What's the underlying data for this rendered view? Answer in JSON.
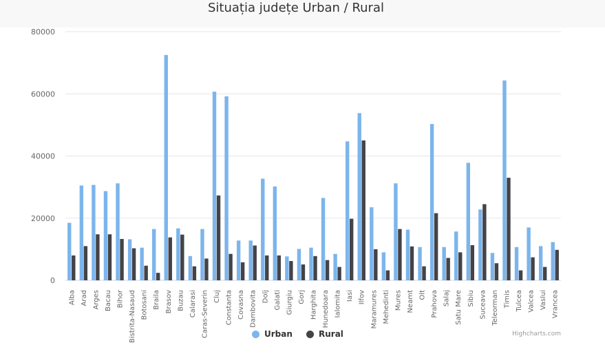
{
  "colors": {
    "urban": "#7cb5ec",
    "rural": "#434348",
    "grid": "#e6e6e6",
    "axis": "#ccd6eb"
  },
  "credits": "Highcharts.com",
  "chart_data": {
    "type": "bar",
    "title": "Situația județe Urban / Rural",
    "ylim": [
      0,
      80000
    ],
    "yticks": [
      "0",
      "20000",
      "40000",
      "60000",
      "80000"
    ],
    "grid": true,
    "legend_position": "bottom-center",
    "categories": [
      "Alba",
      "Arad",
      "Arges",
      "Bacau",
      "Bihor",
      "Bistrita-Nasaud",
      "Botosani",
      "Braila",
      "Brasov",
      "Buzau",
      "Calarasi",
      "Caras-Severin",
      "Cluj",
      "Constanta",
      "Covasna",
      "Dambovita",
      "Dolj",
      "Galati",
      "Giurgiu",
      "Gorj",
      "Harghita",
      "Hunedoara",
      "Ialomita",
      "Iasi",
      "Ilfov",
      "Maramures",
      "Mehedinti",
      "Mures",
      "Neamt",
      "Olt",
      "Prahova",
      "Salaj",
      "Satu Mare",
      "Sibiu",
      "Suceava",
      "Teleorman",
      "Timis",
      "Tulcea",
      "Valcea",
      "Vaslui",
      "Vrancea"
    ],
    "series": [
      {
        "name": "Urban",
        "values": [
          18500,
          30500,
          30700,
          28700,
          31200,
          13200,
          10500,
          16500,
          72500,
          16700,
          7800,
          16500,
          60700,
          59200,
          12800,
          12800,
          32700,
          30200,
          7700,
          10100,
          10500,
          26500,
          8500,
          44700,
          53800,
          23500,
          9000,
          31200,
          16300,
          10700,
          50300,
          10700,
          15700,
          37800,
          22800,
          8800,
          64300,
          10700,
          17000,
          11000,
          12300
        ]
      },
      {
        "name": "Rural",
        "values": [
          8000,
          11000,
          14800,
          14800,
          13300,
          10300,
          4700,
          2400,
          13800,
          14700,
          4500,
          7000,
          27300,
          8500,
          5800,
          11200,
          8000,
          8000,
          6200,
          5100,
          7800,
          6500,
          4300,
          19800,
          45000,
          10000,
          3200,
          16500,
          10900,
          4500,
          21600,
          7200,
          9000,
          11300,
          24500,
          5500,
          33000,
          3200,
          7400,
          4300,
          9800
        ]
      }
    ]
  }
}
